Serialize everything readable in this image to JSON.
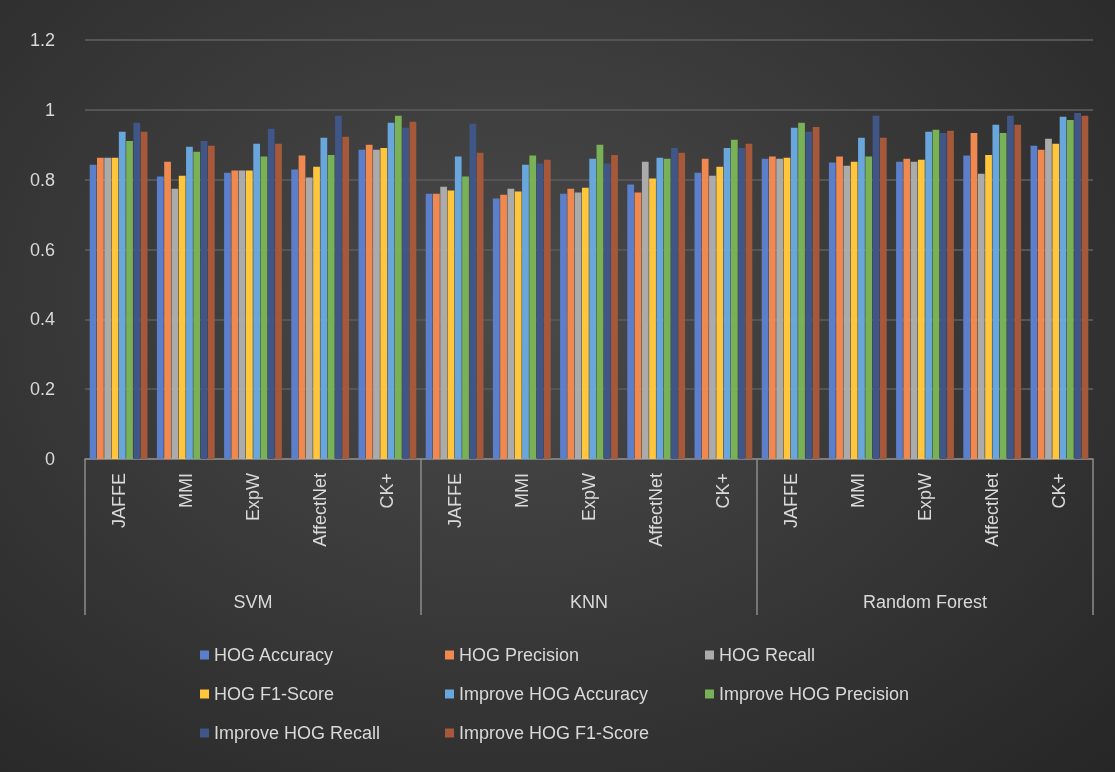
{
  "chart_data": {
    "type": "bar",
    "categories": [
      "JAFFE",
      "MMI",
      "ExpW",
      "AffectNet",
      "CK+",
      "JAFFE",
      "MMI",
      "ExpW",
      "AffectNet",
      "CK+",
      "JAFFE",
      "MMI",
      "ExpW",
      "AffectNet",
      "CK+"
    ],
    "annotations": [
      "SVM",
      "KNN",
      "Random Forest"
    ],
    "series": [
      {
        "name": "HOG Accuracy",
        "color": "#5b7fcb",
        "values": [
          0.843,
          0.809,
          0.82,
          0.829,
          0.886,
          0.76,
          0.746,
          0.76,
          0.786,
          0.82,
          0.86,
          0.849,
          0.851,
          0.869,
          0.897
        ]
      },
      {
        "name": "HOG Precision",
        "color": "#f0894f",
        "values": [
          0.863,
          0.851,
          0.826,
          0.869,
          0.9,
          0.76,
          0.757,
          0.774,
          0.763,
          0.86,
          0.866,
          0.866,
          0.86,
          0.934,
          0.886
        ]
      },
      {
        "name": "HOG Recall",
        "color": "#ababab",
        "values": [
          0.863,
          0.774,
          0.826,
          0.806,
          0.886,
          0.78,
          0.774,
          0.763,
          0.851,
          0.811,
          0.86,
          0.84,
          0.851,
          0.817,
          0.917
        ]
      },
      {
        "name": "HOG F1-Score",
        "color": "#fec53d",
        "values": [
          0.863,
          0.811,
          0.826,
          0.837,
          0.891,
          0.769,
          0.766,
          0.777,
          0.803,
          0.837,
          0.863,
          0.851,
          0.857,
          0.871,
          0.903
        ]
      },
      {
        "name": "Improve HOG Accuracy",
        "color": "#69a6dc",
        "values": [
          0.937,
          0.894,
          0.903,
          0.92,
          0.963,
          0.866,
          0.843,
          0.86,
          0.863,
          0.891,
          0.949,
          0.92,
          0.937,
          0.957,
          0.98
        ]
      },
      {
        "name": "Improve HOG Precision",
        "color": "#79b157",
        "values": [
          0.911,
          0.88,
          0.866,
          0.871,
          0.983,
          0.809,
          0.869,
          0.9,
          0.86,
          0.914,
          0.963,
          0.866,
          0.943,
          0.934,
          0.971
        ]
      },
      {
        "name": "Improve HOG Recall",
        "color": "#3f5686",
        "values": [
          0.963,
          0.911,
          0.946,
          0.983,
          0.949,
          0.96,
          0.846,
          0.846,
          0.891,
          0.891,
          0.937,
          0.983,
          0.934,
          0.983,
          0.991
        ]
      },
      {
        "name": "Improve HOG F1-Score",
        "color": "#a6583a",
        "values": [
          0.937,
          0.897,
          0.903,
          0.923,
          0.966,
          0.877,
          0.857,
          0.871,
          0.877,
          0.903,
          0.951,
          0.92,
          0.94,
          0.957,
          0.983
        ]
      }
    ],
    "ylim": [
      0,
      1.2
    ],
    "yticks": [
      0,
      0.2,
      0.4,
      0.6,
      0.8,
      1,
      1.2
    ],
    "grid": "y",
    "legend": "bottom"
  }
}
